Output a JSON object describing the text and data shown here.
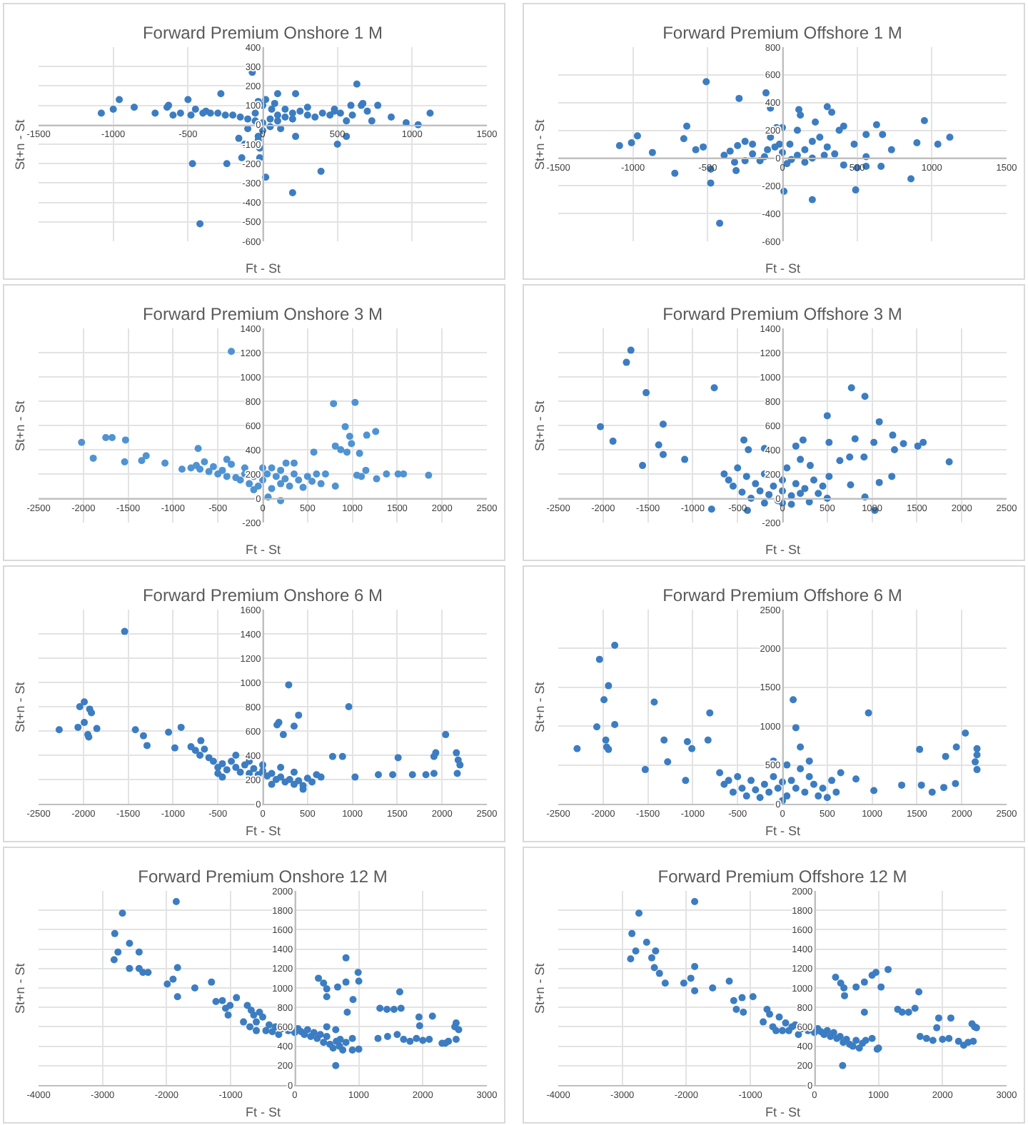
{
  "chart_data": [
    {
      "type": "scatter",
      "title": "Forward Premium Onshore 1 M",
      "xlabel": "Ft - St",
      "ylabel": "St+n - St",
      "color": "#3c7dc2",
      "marker": "circle",
      "grid": true,
      "xlim": [
        -1500,
        1500
      ],
      "ylim": [
        -600,
        400
      ],
      "xticks": [
        -1500,
        -1000,
        -500,
        0,
        500,
        1000,
        1500
      ],
      "yticks": [
        -600,
        -500,
        -400,
        -300,
        -200,
        -100,
        0,
        100,
        200,
        300,
        400
      ],
      "x": [
        -70,
        630,
        -1080,
        -1000,
        -960,
        -860,
        -720,
        -640,
        -630,
        -500,
        -280,
        100,
        220,
        590,
        660,
        670,
        770,
        860,
        960,
        1040,
        1120,
        730,
        560,
        560,
        500,
        390,
        200,
        20,
        -20,
        -140,
        -240,
        -470,
        -420,
        -120,
        -160,
        220,
        -30,
        -600,
        -550,
        -480,
        -450,
        -400,
        -380,
        -350,
        -300,
        -250,
        -200,
        -150,
        -100,
        -50,
        0,
        50,
        100,
        150,
        200,
        250,
        300,
        350,
        400,
        450,
        -100,
        0,
        -30,
        50,
        100,
        150,
        200,
        300,
        -50,
        0,
        80,
        700,
        600,
        520,
        480,
        -30,
        20,
        480,
        -20,
        60,
        120
      ],
      "values": [
        270,
        210,
        60,
        80,
        130,
        90,
        60,
        90,
        100,
        130,
        160,
        160,
        160,
        100,
        100,
        110,
        100,
        40,
        10,
        0,
        60,
        20,
        20,
        -60,
        -100,
        -240,
        -350,
        -270,
        -170,
        -170,
        -200,
        -200,
        -510,
        -100,
        -70,
        -60,
        -60,
        50,
        60,
        50,
        80,
        60,
        70,
        60,
        60,
        50,
        50,
        40,
        30,
        20,
        10,
        30,
        50,
        40,
        60,
        70,
        50,
        40,
        60,
        50,
        -20,
        -30,
        -80,
        -10,
        20,
        80,
        30,
        90,
        60,
        100,
        110,
        70,
        50,
        60,
        80,
        120,
        130,
        70,
        -120,
        80,
        -20
      ]
    },
    {
      "type": "scatter",
      "title": "Forward Premium Offshore 1 M",
      "xlabel": "Ft - St",
      "ylabel": "St+n - St",
      "color": "#3c7dc2",
      "marker": "circle",
      "grid": true,
      "xlim": [
        -1500,
        1500
      ],
      "ylim": [
        -600,
        800
      ],
      "xticks": [
        -1500,
        -1000,
        -500,
        0,
        500,
        1000,
        1500
      ],
      "yticks": [
        -600,
        -400,
        -200,
        0,
        200,
        400,
        600,
        800
      ],
      "x": [
        -510,
        -290,
        -110,
        -80,
        -420,
        -1090,
        -1010,
        -970,
        -870,
        -720,
        -660,
        -640,
        -580,
        -530,
        -480,
        -480,
        -390,
        -310,
        -320,
        10,
        200,
        110,
        120,
        300,
        330,
        220,
        410,
        380,
        480,
        560,
        630,
        670,
        730,
        860,
        900,
        950,
        1040,
        1120,
        490,
        500,
        560,
        660,
        560,
        410,
        -350,
        -300,
        -250,
        -200,
        -150,
        -100,
        -50,
        0,
        50,
        100,
        150,
        200,
        250,
        300,
        350,
        -80,
        0,
        -40,
        100,
        150,
        -250,
        30,
        200,
        -200,
        -120,
        60,
        280,
        -20
      ],
      "values": [
        550,
        430,
        470,
        360,
        -470,
        90,
        110,
        160,
        40,
        -110,
        140,
        230,
        60,
        80,
        -180,
        -80,
        20,
        -90,
        -30,
        -240,
        -300,
        350,
        310,
        370,
        330,
        260,
        230,
        200,
        100,
        170,
        240,
        170,
        60,
        -150,
        110,
        270,
        100,
        150,
        -230,
        -70,
        -60,
        -60,
        10,
        -50,
        50,
        90,
        120,
        30,
        -20,
        60,
        80,
        40,
        100,
        20,
        60,
        0,
        150,
        80,
        30,
        150,
        220,
        220,
        200,
        -30,
        -20,
        -40,
        120,
        100,
        10,
        -10,
        20,
        100
      ]
    },
    {
      "type": "scatter",
      "title": "Forward Premium Onshore 3 M",
      "xlabel": "Ft - St",
      "ylabel": "St+n - St",
      "color": "#4f93d3",
      "marker": "circle",
      "grid": true,
      "xlim": [
        -2500,
        2500
      ],
      "ylim": [
        -200,
        1400
      ],
      "xticks": [
        -2500,
        -2000,
        -1500,
        -1000,
        -500,
        0,
        500,
        1000,
        1500,
        2000,
        2500
      ],
      "yticks": [
        -200,
        0,
        200,
        400,
        600,
        800,
        1000,
        1200,
        1400
      ],
      "x": [
        -350,
        -2020,
        -1890,
        -1750,
        -1680,
        -1530,
        -1540,
        -1350,
        -1300,
        -1090,
        -720,
        -900,
        -740,
        790,
        1030,
        920,
        970,
        990,
        940,
        1080,
        1260,
        1160,
        570,
        810,
        870,
        1150,
        1050,
        1100,
        1270,
        1380,
        1510,
        1570,
        1850,
        200,
        60,
        810,
        260,
        350,
        -800,
        -700,
        -600,
        -550,
        -500,
        -450,
        -400,
        -350,
        -300,
        -250,
        -200,
        -150,
        -100,
        -50,
        0,
        0,
        50,
        100,
        150,
        200,
        250,
        300,
        350,
        400,
        450,
        500,
        550,
        600,
        650,
        700,
        -650,
        -400,
        -200,
        100,
        -100,
        200
      ],
      "values": [
        1210,
        460,
        330,
        500,
        500,
        480,
        300,
        310,
        350,
        290,
        410,
        240,
        270,
        780,
        790,
        590,
        510,
        450,
        380,
        370,
        550,
        520,
        380,
        430,
        400,
        230,
        190,
        180,
        160,
        200,
        200,
        200,
        190,
        -20,
        10,
        100,
        290,
        290,
        250,
        240,
        220,
        260,
        200,
        230,
        180,
        280,
        170,
        150,
        200,
        120,
        180,
        100,
        150,
        250,
        200,
        80,
        180,
        120,
        160,
        100,
        200,
        150,
        90,
        180,
        140,
        200,
        120,
        200,
        300,
        320,
        250,
        250,
        70,
        230
      ]
    },
    {
      "type": "scatter",
      "title": "Forward Premium Offshore 3 M",
      "xlabel": "Ft - St",
      "ylabel": "St+n - St",
      "color": "#3c7dc2",
      "marker": "circle",
      "grid": true,
      "xlim": [
        -2500,
        2500
      ],
      "ylim": [
        -200,
        1400
      ],
      "xticks": [
        -2500,
        -2000,
        -1500,
        -1000,
        -500,
        0,
        500,
        1000,
        1500,
        2000,
        2500
      ],
      "yticks": [
        -200,
        0,
        200,
        400,
        600,
        800,
        1000,
        1200,
        1400
      ],
      "x": [
        -1690,
        -1740,
        -1520,
        -760,
        -1330,
        -2030,
        -1890,
        -1380,
        -1330,
        -1560,
        -1090,
        -790,
        -430,
        -380,
        -200,
        150,
        230,
        500,
        520,
        770,
        920,
        810,
        1020,
        1080,
        1230,
        1350,
        1510,
        1570,
        1860,
        1250,
        1220,
        1080,
        760,
        640,
        750,
        910,
        920,
        1030,
        -390,
        520,
        310,
        200,
        -650,
        -600,
        -550,
        -500,
        -450,
        -400,
        -350,
        -300,
        -250,
        -200,
        -150,
        -100,
        -50,
        0,
        0,
        50,
        100,
        150,
        200,
        250,
        300,
        350,
        400,
        450,
        500,
        -200,
        100,
        0
      ],
      "values": [
        1220,
        1120,
        870,
        910,
        610,
        590,
        470,
        440,
        360,
        270,
        320,
        -90,
        480,
        400,
        410,
        430,
        480,
        680,
        460,
        910,
        840,
        490,
        460,
        630,
        520,
        450,
        430,
        460,
        300,
        400,
        180,
        130,
        110,
        310,
        340,
        340,
        10,
        -100,
        -100,
        180,
        270,
        320,
        200,
        150,
        100,
        250,
        50,
        180,
        0,
        120,
        60,
        200,
        30,
        100,
        -20,
        60,
        150,
        250,
        20,
        120,
        40,
        80,
        -30,
        150,
        40,
        100,
        0,
        -40,
        -50,
        -40
      ]
    },
    {
      "type": "scatter",
      "title": "Forward Premium Onshore 6 M",
      "xlabel": "Ft - St",
      "ylabel": "St+n - St",
      "color": "#3c7dc2",
      "marker": "circle",
      "grid": true,
      "xlim": [
        -2500,
        2500
      ],
      "ylim": [
        0,
        1600
      ],
      "xticks": [
        -2500,
        -2000,
        -1500,
        -1000,
        -500,
        0,
        500,
        1000,
        1500,
        2000,
        2500
      ],
      "yticks": [
        0,
        200,
        400,
        600,
        800,
        1000,
        1200,
        1400,
        1600
      ],
      "x": [
        -1540,
        -2270,
        -2060,
        -2040,
        -1990,
        -1930,
        -1910,
        -1990,
        -1950,
        -1940,
        -1850,
        -1420,
        -1330,
        -1290,
        -1050,
        -910,
        -980,
        -690,
        290,
        180,
        160,
        350,
        400,
        230,
        960,
        1030,
        780,
        890,
        1510,
        1290,
        1450,
        1670,
        1820,
        1910,
        1930,
        2040,
        2160,
        2180,
        2200,
        2170,
        1910,
        -800,
        -750,
        -700,
        -650,
        -600,
        -550,
        -500,
        -450,
        -400,
        -350,
        -300,
        -250,
        -200,
        -150,
        -100,
        -50,
        0,
        50,
        100,
        150,
        200,
        250,
        300,
        350,
        400,
        450,
        500,
        550,
        600,
        650,
        -450,
        -300,
        -150,
        0,
        200,
        -500,
        450,
        350,
        100
      ],
      "values": [
        1420,
        610,
        630,
        800,
        840,
        780,
        750,
        670,
        570,
        550,
        620,
        610,
        560,
        480,
        590,
        630,
        460,
        520,
        980,
        670,
        650,
        640,
        730,
        570,
        800,
        220,
        390,
        390,
        380,
        240,
        240,
        240,
        240,
        390,
        420,
        570,
        420,
        360,
        320,
        250,
        250,
        470,
        440,
        400,
        450,
        380,
        350,
        300,
        330,
        280,
        350,
        300,
        260,
        320,
        250,
        290,
        240,
        270,
        230,
        250,
        200,
        220,
        180,
        200,
        160,
        190,
        150,
        210,
        180,
        240,
        220,
        220,
        400,
        350,
        320,
        300,
        250,
        120,
        260,
        160
      ]
    },
    {
      "type": "scatter",
      "title": "Forward Premium Offshore 6 M",
      "xlabel": "Ft - St",
      "ylabel": "St+n - St",
      "color": "#3c7dc2",
      "marker": "circle",
      "grid": true,
      "xlim": [
        -2500,
        2500
      ],
      "ylim": [
        0,
        2500
      ],
      "xticks": [
        -2500,
        -2000,
        -1500,
        -1000,
        -500,
        0,
        500,
        1000,
        1500,
        2000,
        2500
      ],
      "yticks": [
        0,
        500,
        1000,
        1500,
        2000,
        2500
      ],
      "x": [
        -1870,
        -2040,
        -1940,
        -1990,
        -2070,
        -1870,
        -1970,
        -1960,
        -1940,
        -2290,
        -1430,
        -1530,
        -1320,
        -1280,
        -1060,
        -1010,
        -830,
        -810,
        -1080,
        120,
        150,
        200,
        960,
        820,
        1020,
        1330,
        1530,
        1550,
        1670,
        1800,
        1930,
        1820,
        1940,
        2040,
        2170,
        2170,
        2150,
        2170,
        -700,
        -650,
        -600,
        -550,
        -500,
        -450,
        -400,
        -350,
        -300,
        -250,
        -200,
        -150,
        -100,
        -50,
        0,
        50,
        100,
        150,
        200,
        250,
        300,
        350,
        400,
        450,
        500,
        550,
        600,
        650,
        -100,
        50,
        0,
        300
      ],
      "values": [
        2040,
        1860,
        1520,
        1340,
        990,
        1020,
        820,
        730,
        700,
        710,
        1310,
        440,
        820,
        540,
        800,
        710,
        820,
        1170,
        300,
        1340,
        980,
        730,
        1170,
        320,
        170,
        240,
        700,
        240,
        150,
        210,
        260,
        610,
        730,
        910,
        710,
        630,
        540,
        440,
        400,
        250,
        300,
        150,
        350,
        200,
        100,
        300,
        180,
        80,
        250,
        150,
        350,
        200,
        280,
        100,
        300,
        200,
        450,
        150,
        350,
        250,
        100,
        200,
        80,
        300,
        150,
        400,
        550,
        500,
        40,
        550
      ]
    },
    {
      "type": "scatter",
      "title": "Forward Premium Onshore 12 M",
      "xlabel": "Ft - St",
      "ylabel": "St+n - St",
      "color": "#3c7dc2",
      "marker": "circle",
      "grid": true,
      "xlim": [
        -4000,
        3000
      ],
      "ylim": [
        0,
        2000
      ],
      "xticks": [
        -4000,
        -3000,
        -2000,
        -1000,
        0,
        1000,
        2000,
        3000
      ],
      "yticks": [
        0,
        200,
        400,
        600,
        800,
        1000,
        1200,
        1400,
        1600,
        1800,
        2000
      ],
      "x": [
        -1850,
        -2690,
        -2810,
        -2580,
        -2760,
        -2430,
        -2820,
        -2580,
        -2430,
        -2370,
        -2290,
        -1830,
        -1900,
        -1990,
        -1830,
        -1560,
        -1300,
        -1230,
        -1130,
        -910,
        -1080,
        -1010,
        -1040,
        -740,
        -680,
        -640,
        370,
        450,
        500,
        500,
        670,
        800,
        800,
        990,
        1000,
        910,
        820,
        640,
        1330,
        1440,
        1550,
        1660,
        1640,
        1940,
        2150,
        1950,
        2520,
        2560,
        2520,
        2350,
        1000,
        710,
        640,
        -700,
        -600,
        -500,
        -450,
        -400,
        -350,
        -300,
        -250,
        -200,
        -100,
        0,
        50,
        100,
        150,
        200,
        250,
        300,
        350,
        400,
        450,
        500,
        550,
        600,
        650,
        700,
        750,
        800,
        900,
        1300,
        1450,
        1600,
        1700,
        1800,
        1900,
        2000,
        2100,
        2300,
        2400,
        2500,
        -550,
        -800,
        -600,
        500,
        900
      ],
      "values": [
        1890,
        1770,
        1560,
        1460,
        1370,
        1370,
        1290,
        1200,
        1200,
        1160,
        1160,
        1210,
        1090,
        1040,
        910,
        1000,
        1060,
        860,
        870,
        900,
        790,
        820,
        720,
        820,
        770,
        720,
        1100,
        1050,
        990,
        910,
        1010,
        1310,
        1060,
        1160,
        1070,
        880,
        750,
        200,
        790,
        780,
        780,
        790,
        960,
        700,
        710,
        610,
        640,
        570,
        470,
        430,
        370,
        470,
        570,
        600,
        650,
        700,
        560,
        620,
        550,
        600,
        520,
        580,
        560,
        540,
        580,
        550,
        520,
        570,
        500,
        540,
        480,
        520,
        440,
        500,
        420,
        380,
        450,
        400,
        360,
        440,
        480,
        480,
        500,
        520,
        470,
        450,
        480,
        460,
        470,
        430,
        450,
        600,
        750,
        650,
        560,
        600,
        360
      ]
    },
    {
      "type": "scatter",
      "title": "Forward Premium Offshore 12 M",
      "xlabel": "Ft - St",
      "ylabel": "St+n - St",
      "color": "#3c7dc2",
      "marker": "circle",
      "grid": true,
      "xlim": [
        -4000,
        3000
      ],
      "ylim": [
        0,
        2000
      ],
      "xticks": [
        -4000,
        -3000,
        -2000,
        -1000,
        0,
        1000,
        2000,
        3000
      ],
      "yticks": [
        0,
        200,
        400,
        600,
        800,
        1000,
        1200,
        1400,
        1600,
        1800,
        2000
      ],
      "x": [
        -1870,
        -2740,
        -2850,
        -2620,
        -2790,
        -2480,
        -2870,
        -2540,
        -2500,
        -2420,
        -2330,
        -2040,
        -1930,
        -1870,
        -1870,
        -1590,
        -1330,
        -1260,
        -1130,
        -960,
        -1220,
        -1110,
        -740,
        -700,
        330,
        410,
        460,
        470,
        650,
        780,
        900,
        960,
        1040,
        1150,
        780,
        440,
        1300,
        1370,
        1470,
        1630,
        1570,
        1940,
        2130,
        1910,
        2460,
        2530,
        2480,
        2330,
        980,
        -650,
        -550,
        -500,
        -450,
        -400,
        -350,
        -300,
        -250,
        -200,
        -100,
        0,
        50,
        100,
        150,
        200,
        250,
        300,
        350,
        400,
        450,
        500,
        550,
        600,
        650,
        700,
        750,
        800,
        900,
        1000,
        1650,
        1750,
        1850,
        2000,
        2100,
        2250,
        2400,
        2500,
        -800,
        -600
      ],
      "values": [
        1890,
        1770,
        1560,
        1470,
        1380,
        1380,
        1300,
        1310,
        1210,
        1150,
        1050,
        1050,
        1100,
        1220,
        970,
        1000,
        1070,
        870,
        900,
        910,
        780,
        750,
        780,
        730,
        1110,
        1050,
        1000,
        920,
        1010,
        1060,
        1130,
        1160,
        1010,
        1190,
        750,
        200,
        780,
        750,
        750,
        960,
        790,
        690,
        690,
        590,
        630,
        590,
        450,
        410,
        370,
        600,
        700,
        560,
        640,
        560,
        600,
        620,
        520,
        580,
        560,
        540,
        580,
        550,
        520,
        560,
        500,
        540,
        480,
        500,
        440,
        470,
        420,
        400,
        460,
        380,
        430,
        460,
        480,
        380,
        500,
        480,
        460,
        470,
        480,
        450,
        440,
        600,
        650,
        560
      ]
    }
  ]
}
